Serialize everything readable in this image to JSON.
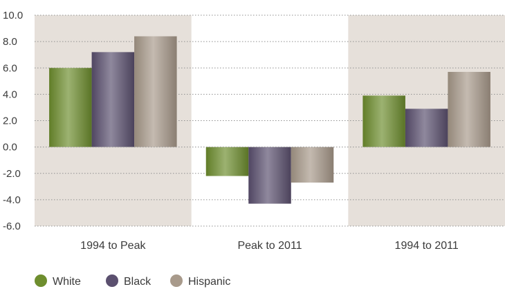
{
  "chart_data": {
    "type": "bar",
    "categories": [
      "1994 to Peak",
      "Peak to 2011",
      "1994 to 2011"
    ],
    "series": [
      {
        "name": "White",
        "values": [
          6.0,
          -2.2,
          3.9
        ],
        "color": "#6e8e2e"
      },
      {
        "name": "Black",
        "values": [
          7.2,
          -4.3,
          2.9
        ],
        "color": "#5b506f"
      },
      {
        "name": "Hispanic",
        "values": [
          8.4,
          -2.7,
          5.7
        ],
        "color": "#a89a8b"
      }
    ],
    "yticks": [
      "10.0",
      "8.0",
      "6.0",
      "4.0",
      "2.0",
      "0.0",
      "-2.0",
      "-4.0",
      "-6.0"
    ],
    "ylim": [
      -6,
      10
    ],
    "grid": true,
    "legend_position": "bottom-left",
    "shaded_band_color": "#e6e0da"
  }
}
